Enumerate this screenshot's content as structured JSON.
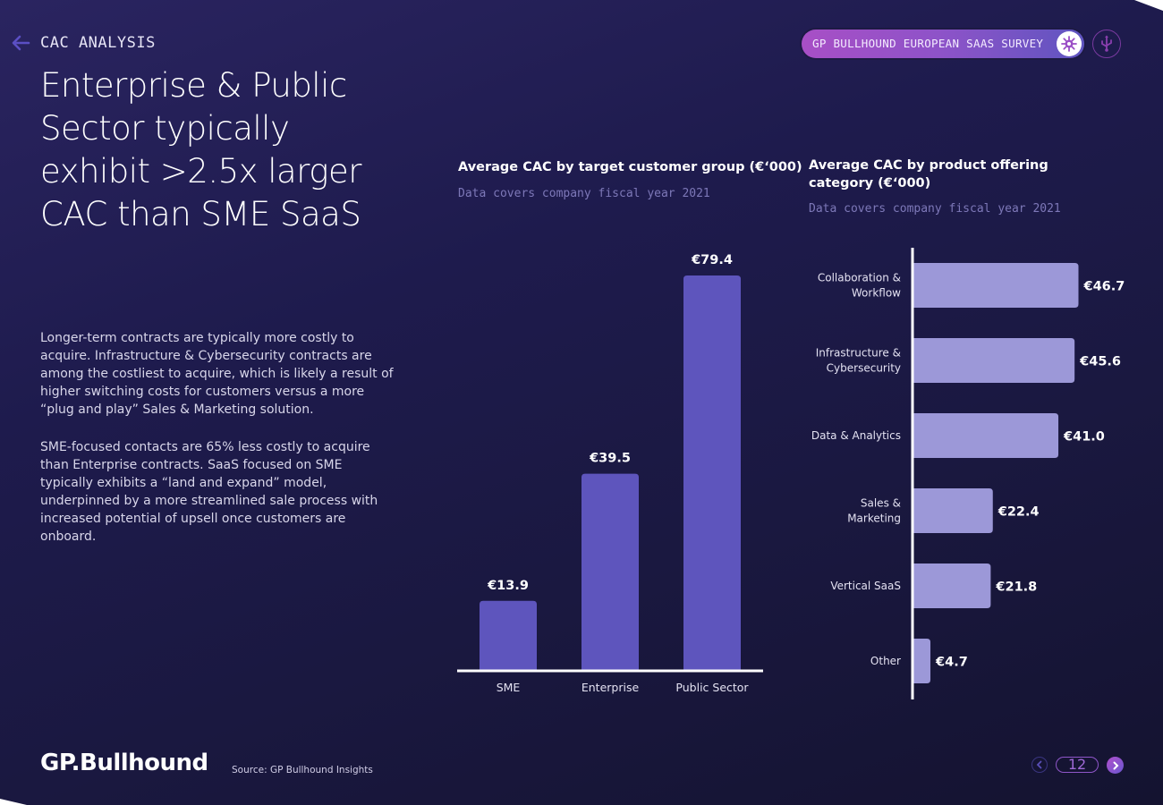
{
  "header": {
    "section_label": "CAC ANALYSIS",
    "survey_label": "GP BULLHOUND EUROPEAN SAAS SURVEY",
    "icons": {
      "back": "arrow-left-icon",
      "survey_badge": "virus-icon",
      "usb": "usb-icon"
    }
  },
  "headline": "Enterprise & Public Sector typically exhibit >2.5x larger CAC than SME SaaS",
  "body": {
    "paragraph1": "Longer-term contracts are typically more costly to acquire. Infrastructure & Cybersecurity contracts are among the costliest to acquire, which is likely a result of higher switching costs for customers versus a more “plug and play” Sales & Marketing solution.",
    "paragraph2": "SME-focused contacts are 65% less costly to acquire than Enterprise contracts. SaaS focused on SME typically exhibits a “land and expand” model, underpinned by a more streamlined sale process with increased potential of upsell once customers are onboard."
  },
  "chart_data": [
    {
      "type": "bar",
      "orientation": "vertical",
      "title": "Average CAC by target customer group (€‘000)",
      "subtitle": "Data covers company fiscal year 2021",
      "categories": [
        "SME",
        "Enterprise",
        "Public Sector"
      ],
      "values": [
        13.9,
        39.5,
        79.4
      ],
      "value_labels": [
        "€13.9",
        "€39.5",
        "€79.4"
      ],
      "xlabel": "",
      "ylabel": "",
      "ylim": [
        0,
        79.4
      ],
      "grid": false,
      "color": "#5e55bd"
    },
    {
      "type": "bar",
      "orientation": "horizontal",
      "title": "Average CAC by product offering category (€‘000)",
      "title_lines": [
        "Average CAC by product offering",
        "category (€‘000)"
      ],
      "subtitle": "Data covers company fiscal year 2021",
      "categories": [
        "Collaboration & Workflow",
        "Infrastructure & Cybersecurity",
        "Data & Analytics",
        "Sales & Marketing",
        "Vertical SaaS",
        "Other"
      ],
      "category_lines": [
        [
          "Collaboration &",
          "Workflow"
        ],
        [
          "Infrastructure &",
          "Cybersecurity"
        ],
        [
          "Data & Analytics"
        ],
        [
          "Sales &",
          "Marketing"
        ],
        [
          "Vertical SaaS"
        ],
        [
          "Other"
        ]
      ],
      "values": [
        46.7,
        45.6,
        41.0,
        22.4,
        21.8,
        4.7
      ],
      "value_labels": [
        "€46.7",
        "€45.6",
        "€41.0",
        "€22.4",
        "€21.8",
        "€4.7"
      ],
      "xlim": [
        0,
        46.7
      ],
      "grid": false,
      "color": "#9c98d8"
    }
  ],
  "footer": {
    "logo": "GP.Bullhound",
    "source": "Source: GP Bullhound Insights",
    "page_number": "12",
    "icons": {
      "prev": "chevron-left-icon",
      "next": "chevron-right-icon"
    }
  },
  "colors": {
    "background": "#1e1b4d",
    "accent_purple": "#a84fc6",
    "accent_blue": "#5f55c0",
    "bar_vertical": "#5e55bd",
    "bar_horizontal": "#9c98d8"
  }
}
